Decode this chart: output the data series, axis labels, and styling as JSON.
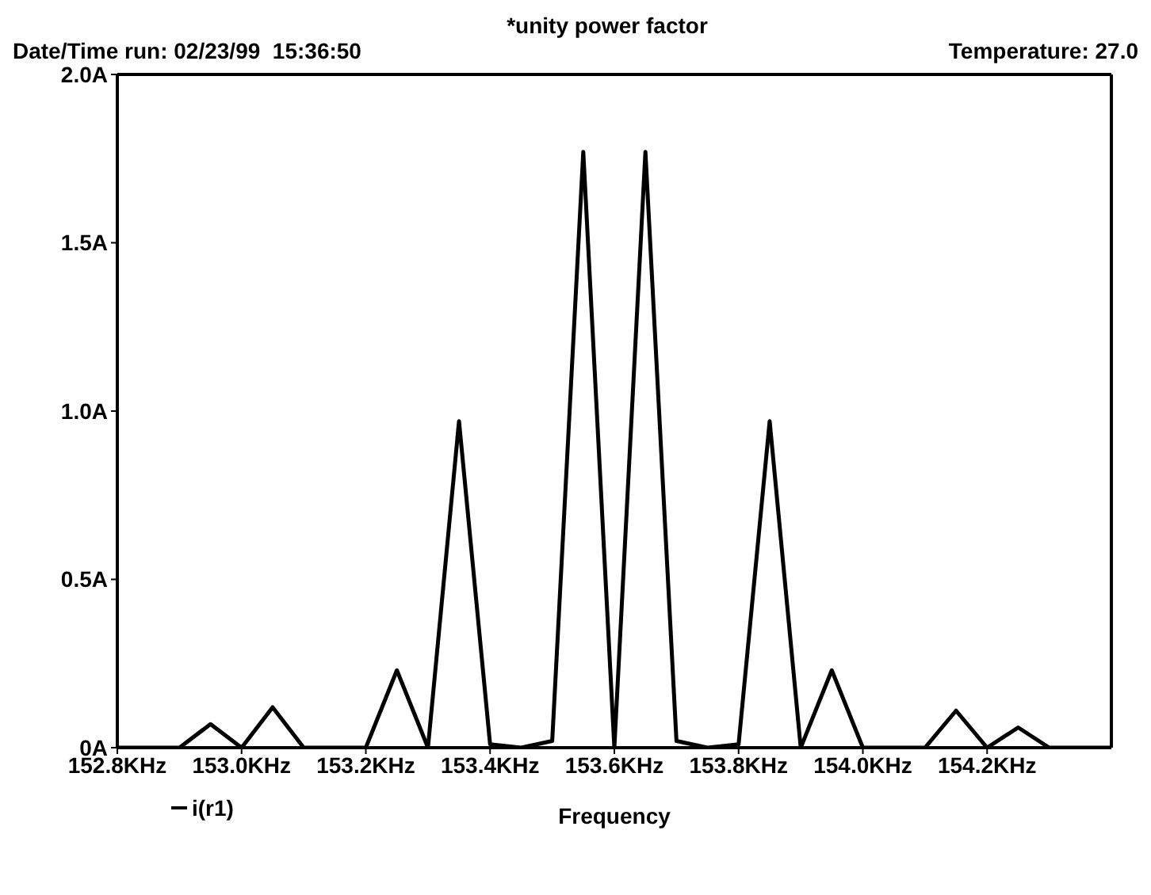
{
  "chart_data": {
    "type": "line",
    "title": "*unity power factor",
    "subtitle": "Date/Time run: 02/23/99  15:36:50",
    "annotations": [
      "Temperature: 27.0"
    ],
    "xlabel": "Frequency",
    "x": [
      152.8,
      152.85,
      152.9,
      152.95,
      153.0,
      153.05,
      153.1,
      153.15,
      153.2,
      153.25,
      153.3,
      153.35,
      153.4,
      153.45,
      153.5,
      153.55,
      153.6,
      153.65,
      153.7,
      153.75,
      153.8,
      153.85,
      153.9,
      153.95,
      154.0,
      154.05,
      154.1,
      154.15,
      154.2,
      154.25,
      154.3,
      154.35,
      154.4
    ],
    "series": [
      {
        "name": "i(r1)",
        "color": "#000000",
        "values": [
          0,
          0,
          0,
          0.07,
          0,
          0.12,
          0,
          0,
          0,
          0.23,
          0,
          0.97,
          0.01,
          0,
          0.02,
          1.77,
          0,
          1.77,
          0.02,
          0,
          0.01,
          0.97,
          0,
          0.23,
          0,
          0,
          0,
          0.11,
          0,
          0.06,
          0,
          0,
          0
        ]
      }
    ],
    "xlim": [
      152.8,
      154.4
    ],
    "xticks": [
      {
        "value": 152.8,
        "label": "152.8KHz"
      },
      {
        "value": 153.0,
        "label": "153.0KHz"
      },
      {
        "value": 153.2,
        "label": "153.2KHz"
      },
      {
        "value": 153.4,
        "label": "153.4KHz"
      },
      {
        "value": 153.6,
        "label": "153.6KHz"
      },
      {
        "value": 153.8,
        "label": "153.8KHz"
      },
      {
        "value": 154.0,
        "label": "154.0KHz"
      },
      {
        "value": 154.2,
        "label": "154.2KHz"
      }
    ],
    "ylim": [
      0,
      2.0
    ],
    "yticks": [
      {
        "value": 0,
        "label": "0A"
      },
      {
        "value": 0.5,
        "label": "0.5A"
      },
      {
        "value": 1.0,
        "label": "1.0A"
      },
      {
        "value": 1.5,
        "label": "1.5A"
      },
      {
        "value": 2.0,
        "label": "2.0A"
      }
    ],
    "grid": false,
    "legend": "bottom left",
    "marker": "none",
    "line_style": "solid"
  }
}
